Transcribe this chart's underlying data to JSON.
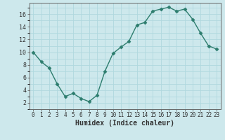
{
  "x": [
    0,
    1,
    2,
    3,
    4,
    5,
    6,
    7,
    8,
    9,
    10,
    11,
    12,
    13,
    14,
    15,
    16,
    17,
    18,
    19,
    20,
    21,
    22,
    23
  ],
  "y": [
    10,
    8.5,
    7.5,
    5,
    3,
    3.5,
    2.7,
    2.2,
    3.2,
    7,
    9.8,
    10.8,
    11.7,
    14.3,
    14.7,
    16.5,
    16.8,
    17.1,
    16.5,
    16.8,
    15.2,
    13.0,
    11.0,
    10.5
  ],
  "line_color": "#2d7d6e",
  "marker_color": "#2d7d6e",
  "bg_color": "#cde8ec",
  "grid_color": "#b0d8de",
  "xlabel": "Humidex (Indice chaleur)",
  "xlim": [
    -0.5,
    23.5
  ],
  "ylim": [
    1,
    17.8
  ],
  "yticks": [
    2,
    4,
    6,
    8,
    10,
    12,
    14,
    16
  ],
  "xticks": [
    0,
    1,
    2,
    3,
    4,
    5,
    6,
    7,
    8,
    9,
    10,
    11,
    12,
    13,
    14,
    15,
    16,
    17,
    18,
    19,
    20,
    21,
    22,
    23
  ],
  "xtick_labels": [
    "0",
    "1",
    "2",
    "3",
    "4",
    "5",
    "6",
    "7",
    "8",
    "9",
    "10",
    "11",
    "12",
    "13",
    "14",
    "15",
    "16",
    "17",
    "18",
    "19",
    "20",
    "21",
    "22",
    "23"
  ],
  "font_color": "#333333",
  "spine_color": "#666666",
  "tick_fontsize": 5.5,
  "xlabel_fontsize": 7.0
}
